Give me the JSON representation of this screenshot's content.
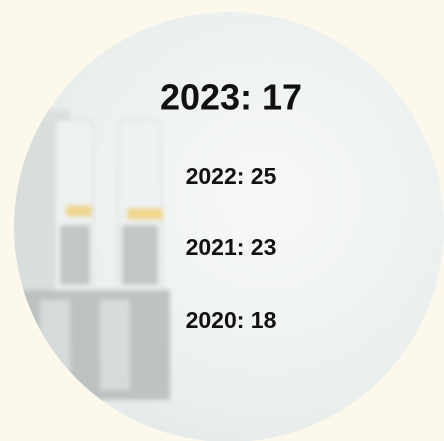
{
  "items": [
    "2023: 17",
    "2022: 25",
    "2021: 23",
    "2020: 18"
  ]
}
